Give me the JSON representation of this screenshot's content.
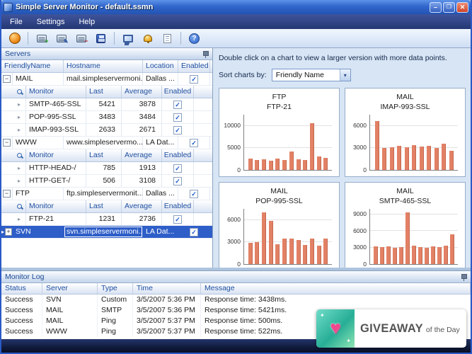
{
  "window": {
    "title": "Simple Server Monitor - default.ssmn"
  },
  "menu": {
    "items": [
      "File",
      "Settings",
      "Help"
    ]
  },
  "toolbar": {
    "buttons": [
      "start-monitoring",
      "add-server",
      "edit-server",
      "remove-server",
      "save",
      "view-charts",
      "alerts",
      "report",
      "help"
    ]
  },
  "servers_panel": {
    "title": "Servers",
    "columns": [
      "FriendlyName",
      "Hostname",
      "Location",
      "Enabled"
    ],
    "monitor_columns": [
      "Monitor",
      "Last",
      "Average",
      "Enabled"
    ],
    "groups": [
      {
        "name": "MAIL",
        "hostname": "mail.simpleservermoni...",
        "location": "Dallas ...",
        "enabled": true,
        "expanded": true,
        "selected": false,
        "monitors": [
          {
            "name": "SMTP-465-SSL",
            "last": "5421",
            "average": "3878",
            "enabled": true
          },
          {
            "name": "POP-995-SSL",
            "last": "3483",
            "average": "3484",
            "enabled": true
          },
          {
            "name": "IMAP-993-SSL",
            "last": "2633",
            "average": "2671",
            "enabled": true
          }
        ]
      },
      {
        "name": "WWW",
        "hostname": "www.simpleservermo...",
        "location": "LA Dat...",
        "enabled": true,
        "expanded": true,
        "selected": false,
        "monitors": [
          {
            "name": "HTTP-HEAD-/",
            "last": "785",
            "average": "1913",
            "enabled": true
          },
          {
            "name": "HTTP-GET-/",
            "last": "506",
            "average": "3108",
            "enabled": true
          }
        ]
      },
      {
        "name": "FTP",
        "hostname": "ftp.simpleservermonit...",
        "location": "Dallas ...",
        "enabled": true,
        "expanded": true,
        "selected": false,
        "monitors": [
          {
            "name": "FTP-21",
            "last": "1231",
            "average": "2736",
            "enabled": true
          }
        ]
      },
      {
        "name": "SVN",
        "hostname": "svn.simpleservermoni...",
        "location": "LA Dat...",
        "enabled": true,
        "expanded": false,
        "selected": true,
        "monitors": []
      }
    ]
  },
  "charts_panel": {
    "hint": "Double click on a chart to view a larger version with more data points.",
    "sort_label": "Sort charts by:",
    "sort_value": "Friendly Name"
  },
  "chart_data": [
    {
      "type": "bar",
      "title": "FTP",
      "subtitle": "FTP-21",
      "ylim": [
        0,
        12500
      ],
      "ticks": [
        0,
        5000,
        10000
      ],
      "values": [
        2600,
        2200,
        2450,
        2150,
        2500,
        2250,
        4200,
        2400,
        2200,
        10600,
        3050,
        2700
      ]
    },
    {
      "type": "bar",
      "title": "MAIL",
      "subtitle": "IMAP-993-SSL",
      "ylim": [
        0,
        7500
      ],
      "ticks": [
        0,
        3000,
        6000
      ],
      "values": [
        6600,
        2950,
        3100,
        3300,
        3050,
        3400,
        3150,
        3250,
        2950,
        3600,
        2630
      ]
    },
    {
      "type": "bar",
      "title": "MAIL",
      "subtitle": "POP-995-SSL",
      "ylim": [
        0,
        7500
      ],
      "ticks": [
        0,
        3000,
        6000
      ],
      "values": [
        2850,
        2950,
        7050,
        5900,
        2650,
        3500,
        3450,
        3300,
        2550,
        3450,
        2500,
        3480
      ]
    },
    {
      "type": "bar",
      "title": "MAIL",
      "subtitle": "SMTP-465-SSL",
      "ylim": [
        0,
        10000
      ],
      "ticks": [
        0,
        3000,
        6000,
        9000
      ],
      "values": [
        3250,
        3050,
        3150,
        2950,
        3050,
        9300,
        3350,
        3050,
        2950,
        3150,
        3050,
        3300,
        5420
      ]
    }
  ],
  "monitor_log": {
    "title": "Monitor Log",
    "columns": [
      "Status",
      "Server",
      "Type",
      "Time",
      "Message"
    ],
    "rows": [
      [
        "Success",
        "SVN",
        "Custom",
        "3/5/2007 5:36 PM",
        "Response time: 3438ms."
      ],
      [
        "Success",
        "MAIL",
        "SMTP",
        "3/5/2007 5:36 PM",
        "Response time: 5421ms."
      ],
      [
        "Success",
        "MAIL",
        "Ping",
        "3/5/2007 5:37 PM",
        "Response time: 500ms."
      ],
      [
        "Success",
        "WWW",
        "Ping",
        "3/5/2007 5:37 PM",
        "Response time: 522ms."
      ]
    ]
  },
  "giveaway": {
    "brand": "GIVEAWAY",
    "suffix": "of the Day",
    "heart": "♥",
    "spark": "✦"
  },
  "colors": {
    "titlebar_blue": "#3166cc",
    "menubar_blue": "#2c4084",
    "selection_blue": "#2e5ec8",
    "bar_salmon": "#e28165",
    "giveaway_teal": "#27ae96",
    "giveaway_pink": "#f0488e"
  }
}
